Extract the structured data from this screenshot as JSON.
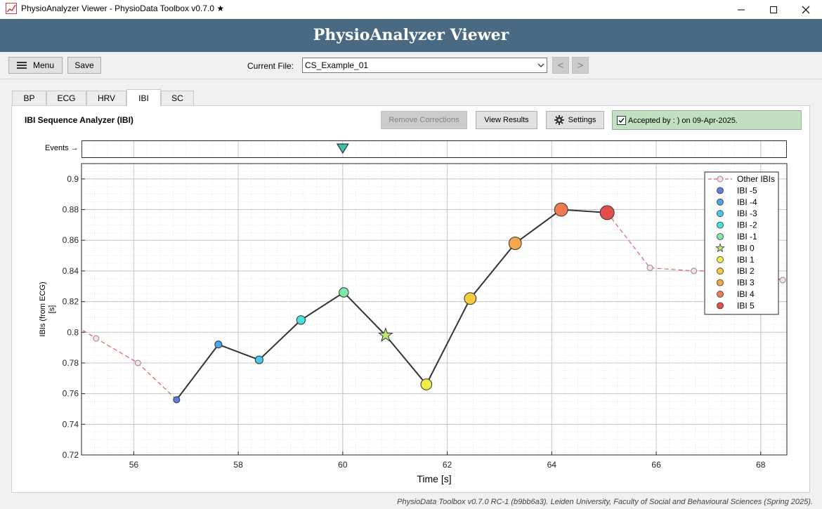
{
  "window": {
    "title": "PhysioAnalyzer Viewer - PhysioData Toolbox v0.7.0 ★",
    "controls": [
      "minimize-icon",
      "maximize-icon",
      "close-icon"
    ]
  },
  "header": {
    "title": "PhysioAnalyzer Viewer"
  },
  "toolbar": {
    "menu_label": "Menu",
    "save_label": "Save",
    "current_file_label": "Current File:",
    "current_file_value": "CS_Example_01",
    "prev_label": "<",
    "next_label": ">"
  },
  "tabs": [
    {
      "label": "BP",
      "active": false
    },
    {
      "label": "ECG",
      "active": false
    },
    {
      "label": "HRV",
      "active": false
    },
    {
      "label": "IBI",
      "active": true
    },
    {
      "label": "SC",
      "active": false
    }
  ],
  "panel": {
    "title": "IBI Sequence Analyzer (IBI)",
    "remove_corrections_label": "Remove Corrections",
    "view_results_label": "View Results",
    "settings_label": "Settings",
    "accepted_text": "Accepted by : ) on 09-Apr-2025.",
    "accepted_checked": true,
    "events_label": "Events →"
  },
  "colors": {
    "header_bg": "#4a6a83",
    "accepted_bg": "#c1dfc1",
    "other_line": "#e06060",
    "seq_line": "#333333"
  },
  "chart_data": {
    "type": "line",
    "xlabel": "Time [s]",
    "ylabel": "IBIs (from ECG)\n[s]",
    "ylabel_lines": [
      "IBIs (from ECG)",
      "[s]"
    ],
    "xlim": [
      55,
      68.5
    ],
    "ylim": [
      0.72,
      0.91
    ],
    "x_ticks": [
      56,
      58,
      60,
      62,
      64,
      66,
      68
    ],
    "y_ticks": [
      0.72,
      0.74,
      0.76,
      0.78,
      0.8,
      0.82,
      0.84,
      0.86,
      0.88,
      0.9
    ],
    "y_tick_labels": [
      "0.72",
      "0.74",
      "0.76",
      "0.78",
      "0.8",
      "0.82",
      "0.84",
      "0.86",
      "0.88",
      "0.9"
    ],
    "grid": true,
    "minor_grid": true,
    "legend_position": "top-right",
    "event_marker": {
      "x": 60
    },
    "other_ibis": {
      "name": "Other IBIs",
      "color": "#e06060",
      "x": [
        54.8,
        55.28,
        56.08,
        56.82,
        65.06,
        65.88,
        66.72,
        67.55,
        68.42
      ],
      "y": [
        0.806,
        0.796,
        0.78,
        0.756,
        0.878,
        0.842,
        0.84,
        0.84,
        0.834
      ],
      "marker_x": [
        55.28,
        56.08,
        65.88,
        66.72,
        68.42
      ],
      "marker_y": [
        0.796,
        0.78,
        0.842,
        0.84,
        0.834
      ]
    },
    "series": [
      {
        "name": "IBI -5",
        "x": 56.82,
        "y": 0.756,
        "color": "#5b7fe0",
        "marker": "circle"
      },
      {
        "name": "IBI -4",
        "x": 57.62,
        "y": 0.792,
        "color": "#4ca3e8",
        "marker": "circle"
      },
      {
        "name": "IBI -3",
        "x": 58.4,
        "y": 0.782,
        "color": "#45c9ea",
        "marker": "circle"
      },
      {
        "name": "IBI -2",
        "x": 59.2,
        "y": 0.808,
        "color": "#48e2dc",
        "marker": "circle"
      },
      {
        "name": "IBI -1",
        "x": 60.02,
        "y": 0.826,
        "color": "#7ee8a8",
        "marker": "circle"
      },
      {
        "name": "IBI 0",
        "x": 60.82,
        "y": 0.798,
        "color": "#b8ea6e",
        "marker": "star"
      },
      {
        "name": "IBI 1",
        "x": 61.6,
        "y": 0.766,
        "color": "#f0ec46",
        "marker": "circle"
      },
      {
        "name": "IBI 2",
        "x": 62.44,
        "y": 0.822,
        "color": "#f5c940",
        "marker": "circle"
      },
      {
        "name": "IBI 3",
        "x": 63.3,
        "y": 0.858,
        "color": "#f5a54a",
        "marker": "circle"
      },
      {
        "name": "IBI 4",
        "x": 64.18,
        "y": 0.88,
        "color": "#ef7a50",
        "marker": "circle"
      },
      {
        "name": "IBI 5",
        "x": 65.06,
        "y": 0.878,
        "color": "#e54d4d",
        "marker": "circle"
      }
    ]
  },
  "footer": "PhysioData Toolbox v0.7.0 RC-1 (b9bb6a3). Leiden University, Faculty of Social and Behavioural Sciences (Spring 2025)."
}
